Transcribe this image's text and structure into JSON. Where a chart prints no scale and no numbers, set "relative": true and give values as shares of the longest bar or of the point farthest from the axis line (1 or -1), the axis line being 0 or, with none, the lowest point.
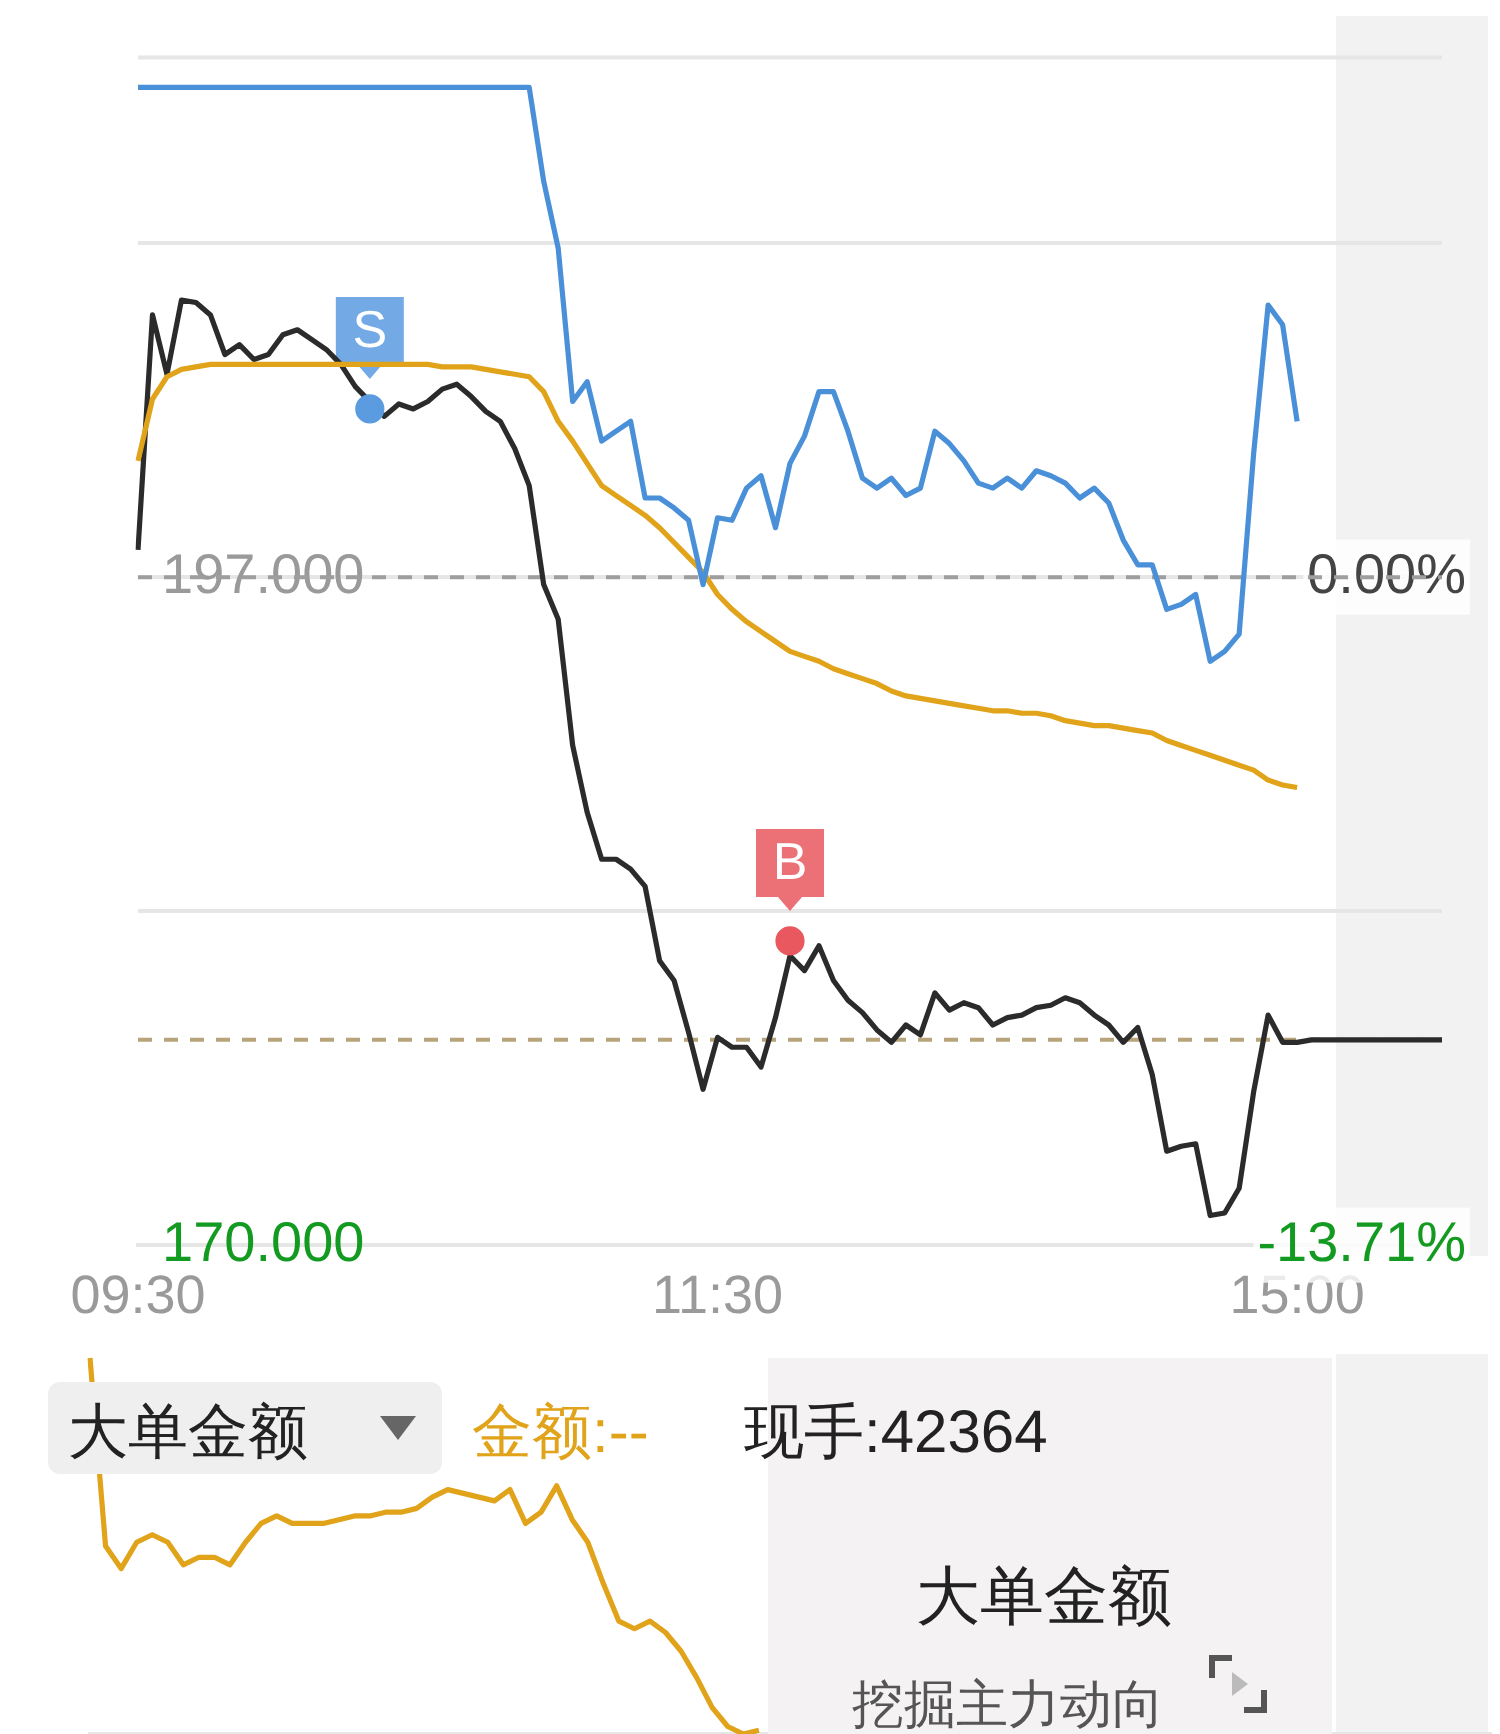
{
  "chart_data": [
    {
      "type": "line",
      "ylim": [
        170,
        218
      ],
      "y2lim": [
        -13.71,
        10.66
      ],
      "categories": [
        "09:30",
        null,
        null,
        null,
        null,
        null,
        null,
        null,
        null,
        null,
        null,
        null,
        null,
        null,
        null,
        null,
        null,
        null,
        null,
        null,
        null,
        null,
        null,
        null,
        null,
        null,
        null,
        null,
        null,
        null,
        null,
        null,
        null,
        null,
        null,
        null,
        null,
        null,
        null,
        null,
        "11:30",
        null,
        null,
        null,
        null,
        null,
        null,
        null,
        null,
        null,
        null,
        null,
        null,
        null,
        null,
        null,
        null,
        null,
        null,
        null,
        null,
        null,
        null,
        null,
        null,
        null,
        null,
        null,
        null,
        null,
        null,
        null,
        null,
        null,
        null,
        null,
        null,
        null,
        null,
        null,
        "15:00",
        null,
        null,
        null,
        null,
        null,
        null,
        null,
        null,
        null,
        null
      ],
      "yticks": [
        {
          "value": 170,
          "label": "170.000"
        },
        {
          "value": 183.5,
          "label": null
        },
        {
          "value": 197,
          "label": "197.000"
        },
        {
          "value": 210.5,
          "label": null
        }
      ],
      "y2ticks": [
        {
          "value": -13.71,
          "label": "-13.71%"
        },
        {
          "value": 0,
          "label": "0.00%"
        }
      ],
      "grid": "y",
      "legend": false,
      "marker": "none",
      "ref_lines": [
        {
          "axis": "y",
          "value": 197,
          "color": "#9e9e9e",
          "line_style": "dashed"
        },
        {
          "axis": "y",
          "value": 178.3,
          "color": "#b8a47a",
          "line_style": "dashed"
        }
      ],
      "series": [
        {
          "color": "#4a90d9",
          "values": [
            216.8,
            216.8,
            216.8,
            216.8,
            216.8,
            216.8,
            216.8,
            216.8,
            216.8,
            216.8,
            216.8,
            216.8,
            216.8,
            216.8,
            216.8,
            216.8,
            216.8,
            216.8,
            216.8,
            216.8,
            216.8,
            216.8,
            216.8,
            216.8,
            216.8,
            216.8,
            216.8,
            216.8,
            213.0,
            210.3,
            204.1,
            204.9,
            202.5,
            202.9,
            203.3,
            200.2,
            200.2,
            199.8,
            199.3,
            196.7,
            199.4,
            199.3,
            200.6,
            201.1,
            199.0,
            201.6,
            202.7,
            204.5,
            204.5,
            202.9,
            201.0,
            200.6,
            201.0,
            200.3,
            200.6,
            202.9,
            202.4,
            201.7,
            200.8,
            200.6,
            201.0,
            200.6,
            201.3,
            201.1,
            200.8,
            200.2,
            200.6,
            200.0,
            198.5,
            197.5,
            197.5,
            195.7,
            195.9,
            196.3,
            193.6,
            194.0,
            194.7,
            202.0,
            208.0,
            207.2,
            203.3,
            null,
            null,
            null,
            null,
            null,
            null,
            null,
            null,
            null,
            null
          ]
        },
        {
          "color": "#e0a31a",
          "values": [
            201.7,
            204.2,
            205.1,
            205.4,
            205.5,
            205.6,
            205.6,
            205.6,
            205.6,
            205.6,
            205.6,
            205.6,
            205.6,
            205.6,
            205.6,
            205.6,
            205.6,
            205.6,
            205.6,
            205.6,
            205.6,
            205.5,
            205.5,
            205.5,
            205.4,
            205.3,
            205.2,
            205.1,
            204.5,
            203.3,
            202.5,
            201.6,
            200.7,
            200.3,
            199.9,
            199.5,
            199.0,
            198.4,
            197.8,
            197.2,
            196.3,
            195.7,
            195.2,
            194.8,
            194.4,
            194.0,
            193.8,
            193.6,
            193.3,
            193.1,
            192.9,
            192.7,
            192.4,
            192.2,
            192.1,
            192.0,
            191.9,
            191.8,
            191.7,
            191.6,
            191.6,
            191.5,
            191.5,
            191.4,
            191.2,
            191.1,
            191.0,
            191.0,
            190.9,
            190.8,
            190.7,
            190.4,
            190.2,
            190.0,
            189.8,
            189.6,
            189.4,
            189.2,
            188.8,
            188.6,
            188.5,
            null,
            null,
            null,
            null,
            null,
            null,
            null,
            null,
            null,
            null
          ]
        },
        {
          "color": "#2b2b2b",
          "values": [
            198.1,
            207.6,
            205.2,
            208.2,
            208.1,
            207.6,
            206.0,
            206.4,
            205.8,
            206.0,
            206.8,
            207.0,
            206.6,
            206.2,
            205.6,
            204.7,
            204.1,
            203.5,
            204.0,
            203.8,
            204.1,
            204.6,
            204.8,
            204.3,
            203.7,
            203.3,
            202.2,
            200.7,
            196.7,
            195.3,
            190.2,
            187.5,
            185.6,
            185.6,
            185.2,
            184.5,
            181.5,
            180.7,
            178.6,
            176.3,
            178.4,
            178.0,
            178.0,
            177.2,
            179.2,
            181.7,
            181.1,
            182.1,
            180.7,
            179.9,
            179.4,
            178.7,
            178.2,
            178.9,
            178.5,
            180.2,
            179.5,
            179.8,
            179.6,
            178.9,
            179.2,
            179.3,
            179.6,
            179.7,
            180.0,
            179.8,
            179.3,
            178.9,
            178.2,
            178.8,
            176.9,
            173.8,
            174.0,
            174.1,
            171.2,
            171.3,
            172.3,
            176.2,
            179.3,
            178.2,
            178.2,
            178.3,
            178.3,
            178.3,
            178.3,
            178.3,
            178.3,
            178.3,
            178.3,
            178.3,
            178.3
          ]
        },
        {
          "type": "scatter",
          "name": "S",
          "marker": "circle",
          "color": "#5b9be0",
          "values": [
            null,
            null,
            null,
            null,
            null,
            null,
            null,
            null,
            null,
            null,
            null,
            null,
            null,
            null,
            null,
            null,
            203.8,
            null,
            null,
            null,
            null,
            null,
            null,
            null,
            null,
            null,
            null,
            null,
            null,
            null,
            null,
            null,
            null,
            null,
            null,
            null,
            null,
            null,
            null,
            null,
            null,
            null,
            null,
            null,
            null,
            null,
            null,
            null,
            null,
            null,
            null,
            null,
            null,
            null,
            null,
            null,
            null,
            null,
            null,
            null,
            null,
            null,
            null,
            null,
            null,
            null,
            null,
            null,
            null,
            null,
            null,
            null,
            null,
            null,
            null,
            null,
            null,
            null,
            null,
            null,
            null,
            null,
            null,
            null,
            null,
            null,
            null,
            null,
            null,
            null,
            null
          ]
        },
        {
          "type": "scatter",
          "name": "B",
          "marker": "circle",
          "color": "#e8585e",
          "values": [
            null,
            null,
            null,
            null,
            null,
            null,
            null,
            null,
            null,
            null,
            null,
            null,
            null,
            null,
            null,
            null,
            null,
            null,
            null,
            null,
            null,
            null,
            null,
            null,
            null,
            null,
            null,
            null,
            null,
            null,
            null,
            null,
            null,
            null,
            null,
            null,
            null,
            null,
            null,
            null,
            null,
            null,
            null,
            null,
            null,
            182.3,
            null,
            null,
            null,
            null,
            null,
            null,
            null,
            null,
            null,
            null,
            null,
            null,
            null,
            null,
            null,
            null,
            null,
            null,
            null,
            null,
            null,
            null,
            null,
            null,
            null,
            null,
            null,
            null,
            null,
            null,
            null,
            null,
            null,
            null,
            null,
            null,
            null,
            null,
            null,
            null,
            null,
            null,
            null,
            null,
            null
          ]
        }
      ]
    },
    {
      "type": "line",
      "relative": true,
      "legend": false,
      "marker": "none",
      "categories": [
        null,
        null,
        null,
        null,
        null,
        null,
        null,
        null,
        null,
        null,
        null,
        null,
        null,
        null,
        null,
        null,
        null,
        null,
        null,
        null,
        null,
        null,
        null,
        null,
        null,
        null,
        null,
        null,
        null,
        null,
        null,
        null,
        null,
        null,
        null,
        null,
        null,
        null,
        null,
        null,
        null,
        null,
        null,
        null,
        null,
        null,
        null,
        null,
        null,
        null,
        null,
        null,
        null,
        null,
        null,
        null,
        null,
        null,
        null,
        null,
        null,
        null,
        null,
        null,
        null,
        null,
        null,
        null,
        null,
        null,
        null,
        null,
        null,
        null,
        null,
        null,
        null,
        null,
        null,
        null,
        null,
        null,
        null,
        null,
        null,
        null,
        null,
        null,
        null,
        null,
        null
      ],
      "annotations": [
        "大单金额",
        "金额:--",
        "现手:42364",
        "大单金额",
        "挖掘主力动向"
      ],
      "series": [
        {
          "color": "#e0a31a",
          "values": [
            1,
            0.5,
            0.44,
            0.51,
            0.53,
            0.51,
            0.45,
            0.47,
            0.47,
            0.45,
            0.51,
            0.56,
            0.58,
            0.56,
            0.56,
            0.56,
            0.57,
            0.58,
            0.58,
            0.59,
            0.59,
            0.6,
            0.63,
            0.65,
            0.64,
            0.63,
            0.62,
            0.65,
            0.56,
            0.59,
            0.66,
            0.57,
            0.51,
            0.4,
            0.3,
            0.28,
            0.3,
            0.27,
            0.22,
            0.15,
            0.07,
            0.02,
            0,
            0.01,
            null,
            null,
            null,
            null,
            null,
            null,
            null,
            null,
            null,
            null,
            null,
            null,
            null,
            null,
            null,
            null,
            null,
            null,
            null,
            null,
            null,
            null,
            null,
            null,
            null,
            null,
            null,
            null,
            null,
            null,
            null,
            null,
            null,
            null,
            null,
            null,
            null,
            null,
            null,
            null,
            null,
            null,
            null,
            null,
            null,
            null,
            null
          ]
        }
      ]
    }
  ]
}
